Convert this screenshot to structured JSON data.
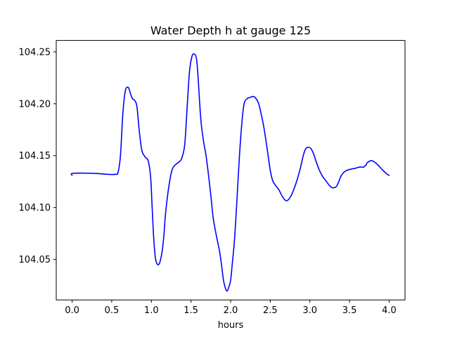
{
  "chart_data": {
    "type": "line",
    "title": "Water Depth h at gauge 125",
    "xlabel": "hours",
    "ylabel": "",
    "xlim": [
      -0.2,
      4.2
    ],
    "ylim": [
      104.011,
      104.261
    ],
    "grid": false,
    "line_color": "#0000ff",
    "x_ticks": [
      0.0,
      0.5,
      1.0,
      1.5,
      2.0,
      2.5,
      3.0,
      3.5,
      4.0
    ],
    "x_tick_labels": [
      "0.0",
      "0.5",
      "1.0",
      "1.5",
      "2.0",
      "2.5",
      "3.0",
      "3.5",
      "4.0"
    ],
    "y_ticks": [
      104.05,
      104.1,
      104.15,
      104.2,
      104.25
    ],
    "y_tick_labels": [
      "104.05",
      "104.10",
      "104.15",
      "104.20",
      "104.25"
    ],
    "series": [
      {
        "x": [
          0.0,
          0.01,
          0.25,
          0.45,
          0.55,
          0.58,
          0.61,
          0.64,
          0.67,
          0.7,
          0.72,
          0.74,
          0.76,
          0.78,
          0.8,
          0.82,
          0.85,
          0.88,
          0.91,
          0.93,
          0.96,
          0.99,
          1.01,
          1.03,
          1.05,
          1.07,
          1.09,
          1.11,
          1.14,
          1.16,
          1.18,
          1.22,
          1.26,
          1.3,
          1.35,
          1.38,
          1.42,
          1.45,
          1.48,
          1.51,
          1.54,
          1.57,
          1.59,
          1.61,
          1.63,
          1.66,
          1.69,
          1.72,
          1.75,
          1.78,
          1.82,
          1.86,
          1.89,
          1.91,
          1.94,
          1.96,
          1.98,
          2.0,
          2.02,
          2.05,
          2.08,
          2.11,
          2.14,
          2.17,
          2.21,
          2.24,
          2.28,
          2.31,
          2.35,
          2.38,
          2.42,
          2.46,
          2.5,
          2.53,
          2.57,
          2.61,
          2.65,
          2.69,
          2.72,
          2.76,
          2.8,
          2.84,
          2.88,
          2.92,
          2.95,
          2.99,
          3.02,
          3.05,
          3.08,
          3.12,
          3.16,
          3.2,
          3.25,
          3.29,
          3.33,
          3.36,
          3.39,
          3.43,
          3.47,
          3.52,
          3.58,
          3.63,
          3.68,
          3.69,
          3.71,
          3.72,
          3.74,
          3.76,
          3.79,
          3.83,
          3.87,
          3.92,
          3.96,
          4.0
        ],
        "y": [
          104.131,
          104.133,
          104.133,
          104.132,
          104.132,
          104.134,
          104.15,
          104.19,
          104.212,
          104.216,
          104.214,
          104.209,
          104.205,
          104.204,
          104.202,
          104.196,
          104.172,
          104.155,
          104.15,
          104.148,
          104.145,
          104.13,
          104.1,
          104.07,
          104.052,
          104.046,
          104.045,
          104.048,
          104.06,
          104.075,
          104.095,
          104.12,
          104.136,
          104.141,
          104.144,
          104.147,
          104.16,
          104.195,
          104.23,
          104.245,
          104.248,
          104.243,
          104.225,
          104.2,
          104.18,
          104.163,
          104.15,
          104.132,
          104.112,
          104.09,
          104.073,
          104.058,
          104.042,
          104.03,
          104.021,
          104.02,
          104.024,
          104.03,
          104.045,
          104.07,
          104.108,
          104.148,
          104.18,
          104.2,
          104.205,
          104.206,
          104.207,
          104.206,
          104.201,
          104.192,
          104.177,
          104.157,
          104.136,
          104.126,
          104.121,
          104.117,
          104.111,
          104.107,
          104.107,
          104.111,
          104.118,
          104.127,
          104.138,
          104.151,
          104.157,
          104.158,
          104.156,
          104.151,
          104.144,
          104.136,
          104.13,
          104.126,
          104.121,
          104.119,
          104.12,
          104.124,
          104.13,
          104.134,
          104.136,
          104.137,
          104.138,
          104.139,
          104.139,
          104.14,
          104.141,
          104.143,
          104.144,
          104.145,
          104.145,
          104.143,
          104.14,
          104.136,
          104.133,
          104.131
        ]
      }
    ]
  }
}
